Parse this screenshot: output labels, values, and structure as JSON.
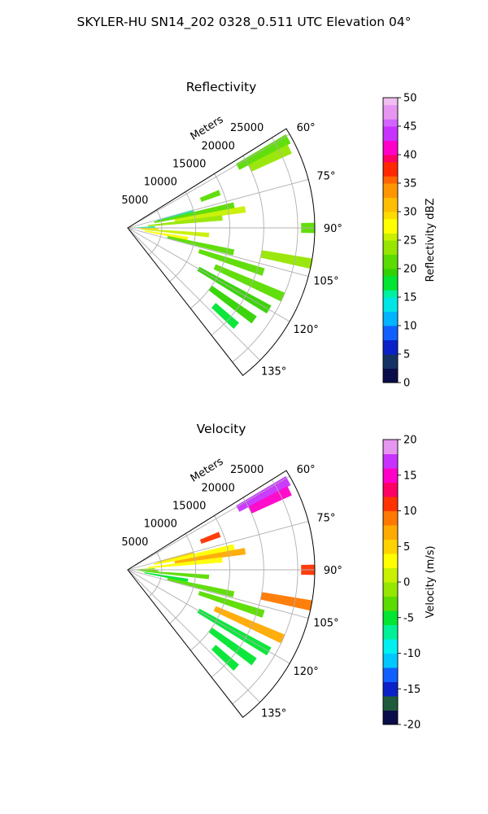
{
  "figure": {
    "suptitle": "SKYLER-HU  SN14_202  0328_0.511 UTC Elevation 04°"
  },
  "chart_data": [
    {
      "type": "ppi-sector",
      "title": "Reflectivity",
      "range_axis_label": "Meters",
      "range_ticks": [
        "5000",
        "10000",
        "15000",
        "20000",
        "25000"
      ],
      "range_tick_values": [
        5000,
        10000,
        15000,
        20000,
        25000
      ],
      "max_range": 27500,
      "azimuth_ticks": [
        "60°",
        "75°",
        "90°",
        "105°",
        "120°",
        "135°"
      ],
      "azimuth_tick_values": [
        60,
        75,
        90,
        105,
        120,
        135
      ],
      "azimuth_range": [
        58,
        142
      ],
      "grid": true,
      "colorbar": {
        "label": "Reflectivity dBZ",
        "vmin": 0,
        "vmax": 50,
        "ticks": [
          "0",
          "5",
          "10",
          "15",
          "20",
          "25",
          "30",
          "35",
          "40",
          "45",
          "50"
        ],
        "tick_values": [
          0,
          5,
          10,
          15,
          20,
          25,
          30,
          35,
          40,
          45,
          50
        ]
      },
      "echo_regions": [
        {
          "az": 61,
          "r0": 18500,
          "r1": 27000,
          "value": 21
        },
        {
          "az": 64,
          "r0": 20000,
          "r1": 26500,
          "value": 23
        },
        {
          "az": 69,
          "r0": 11500,
          "r1": 14500,
          "value": 20
        },
        {
          "az": 76,
          "r0": 4500,
          "r1": 10000,
          "value": 14
        },
        {
          "az": 78,
          "r0": 4000,
          "r1": 16000,
          "value": 20
        },
        {
          "az": 81,
          "r0": 7000,
          "r1": 17500,
          "value": 24
        },
        {
          "az": 84,
          "r0": 3000,
          "r1": 14000,
          "value": 22
        },
        {
          "az": 88,
          "r0": 500,
          "r1": 4000,
          "value": 15
        },
        {
          "az": 92,
          "r0": 1500,
          "r1": 4500,
          "value": 28
        },
        {
          "az": 95,
          "r0": 2000,
          "r1": 12000,
          "value": 25
        },
        {
          "az": 100,
          "r0": 2500,
          "r1": 9000,
          "value": 26
        },
        {
          "az": 103,
          "r0": 6000,
          "r1": 16000,
          "value": 21
        },
        {
          "az": 90,
          "r0": 25500,
          "r1": 27500,
          "value": 20
        },
        {
          "az": 101,
          "r0": 20000,
          "r1": 27500,
          "value": 22
        },
        {
          "az": 108,
          "r0": 11000,
          "r1": 21000,
          "value": 20
        },
        {
          "az": 114,
          "r0": 14000,
          "r1": 25000,
          "value": 21
        },
        {
          "az": 120,
          "r0": 12000,
          "r1": 24000,
          "value": 19
        },
        {
          "az": 126,
          "r0": 15000,
          "r1": 23000,
          "value": 18
        },
        {
          "az": 132,
          "r0": 17000,
          "r1": 21500,
          "value": 17
        }
      ]
    },
    {
      "type": "ppi-sector",
      "title": "Velocity",
      "range_axis_label": "Meters",
      "range_ticks": [
        "5000",
        "10000",
        "15000",
        "20000",
        "25000"
      ],
      "range_tick_values": [
        5000,
        10000,
        15000,
        20000,
        25000
      ],
      "max_range": 27500,
      "azimuth_ticks": [
        "60°",
        "75°",
        "90°",
        "105°",
        "120°",
        "135°"
      ],
      "azimuth_tick_values": [
        60,
        75,
        90,
        105,
        120,
        135
      ],
      "azimuth_range": [
        58,
        142
      ],
      "grid": true,
      "colorbar": {
        "label": "Velocity (m/s)",
        "vmin": -20,
        "vmax": 20,
        "ticks": [
          "-20",
          "-15",
          "-10",
          "-5",
          "0",
          "5",
          "10",
          "15",
          "20"
        ],
        "tick_values": [
          -20,
          -15,
          -10,
          -5,
          0,
          5,
          10,
          15,
          20
        ]
      },
      "echo_regions": [
        {
          "az": 61,
          "r0": 18500,
          "r1": 27000,
          "value": 16
        },
        {
          "az": 64,
          "r0": 20000,
          "r1": 26500,
          "value": 15
        },
        {
          "az": 69,
          "r0": 11500,
          "r1": 14500,
          "value": 11
        },
        {
          "az": 76,
          "r0": 4500,
          "r1": 10000,
          "value": 5
        },
        {
          "az": 78,
          "r0": 4000,
          "r1": 16000,
          "value": 3
        },
        {
          "az": 81,
          "r0": 7000,
          "r1": 17500,
          "value": 6
        },
        {
          "az": 84,
          "r0": 3000,
          "r1": 14000,
          "value": 2
        },
        {
          "az": 88,
          "r0": 500,
          "r1": 4000,
          "value": -2
        },
        {
          "az": 92,
          "r0": 1500,
          "r1": 4500,
          "value": -3
        },
        {
          "az": 95,
          "r0": 2000,
          "r1": 12000,
          "value": -3
        },
        {
          "az": 100,
          "r0": 2500,
          "r1": 9000,
          "value": -6
        },
        {
          "az": 103,
          "r0": 6000,
          "r1": 16000,
          "value": -4
        },
        {
          "az": 90,
          "r0": 25500,
          "r1": 27500,
          "value": 11
        },
        {
          "az": 101,
          "r0": 20000,
          "r1": 27500,
          "value": 9
        },
        {
          "az": 108,
          "r0": 11000,
          "r1": 21000,
          "value": -4
        },
        {
          "az": 114,
          "r0": 14000,
          "r1": 25000,
          "value": 7
        },
        {
          "az": 120,
          "r0": 12000,
          "r1": 24000,
          "value": -5
        },
        {
          "az": 126,
          "r0": 15000,
          "r1": 23000,
          "value": -5
        },
        {
          "az": 132,
          "r0": 17000,
          "r1": 21500,
          "value": -6
        }
      ]
    }
  ]
}
